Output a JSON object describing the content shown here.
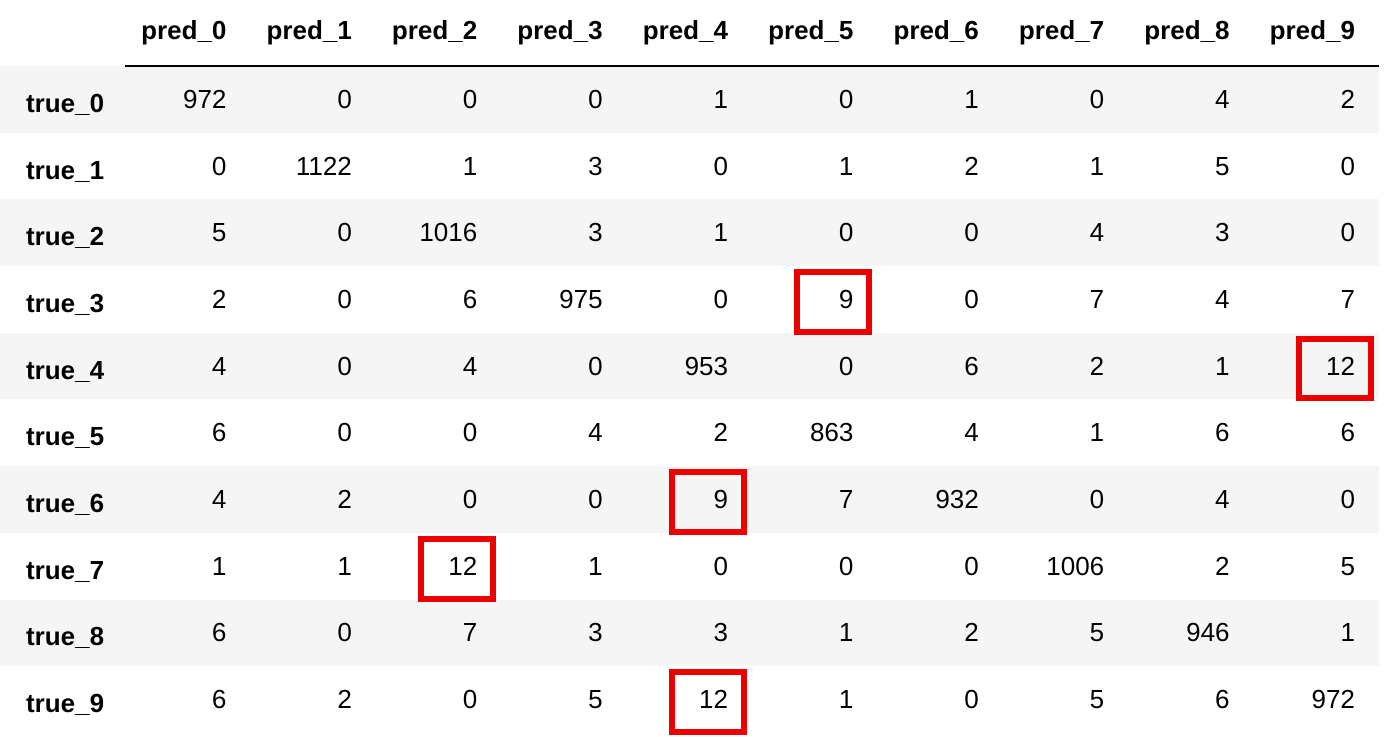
{
  "corner": "",
  "columns": [
    "pred_0",
    "pred_1",
    "pred_2",
    "pred_3",
    "pred_4",
    "pred_5",
    "pred_6",
    "pred_7",
    "pred_8",
    "pred_9"
  ],
  "rows": [
    {
      "label": "true_0",
      "values": [
        "972",
        "0",
        "0",
        "0",
        "1",
        "0",
        "1",
        "0",
        "4",
        "2"
      ],
      "highlighted": []
    },
    {
      "label": "true_1",
      "values": [
        "0",
        "1122",
        "1",
        "3",
        "0",
        "1",
        "2",
        "1",
        "5",
        "0"
      ],
      "highlighted": []
    },
    {
      "label": "true_2",
      "values": [
        "5",
        "0",
        "1016",
        "3",
        "1",
        "0",
        "0",
        "4",
        "3",
        "0"
      ],
      "highlighted": []
    },
    {
      "label": "true_3",
      "values": [
        "2",
        "0",
        "6",
        "975",
        "0",
        "9",
        "0",
        "7",
        "4",
        "7"
      ],
      "highlighted": [
        5
      ]
    },
    {
      "label": "true_4",
      "values": [
        "4",
        "0",
        "4",
        "0",
        "953",
        "0",
        "6",
        "2",
        "1",
        "12"
      ],
      "highlighted": [
        9
      ]
    },
    {
      "label": "true_5",
      "values": [
        "6",
        "0",
        "0",
        "4",
        "2",
        "863",
        "4",
        "1",
        "6",
        "6"
      ],
      "highlighted": []
    },
    {
      "label": "true_6",
      "values": [
        "4",
        "2",
        "0",
        "0",
        "9",
        "7",
        "932",
        "0",
        "4",
        "0"
      ],
      "highlighted": [
        4
      ]
    },
    {
      "label": "true_7",
      "values": [
        "1",
        "1",
        "12",
        "1",
        "0",
        "0",
        "0",
        "1006",
        "2",
        "5"
      ],
      "highlighted": [
        2
      ]
    },
    {
      "label": "true_8",
      "values": [
        "6",
        "0",
        "7",
        "3",
        "3",
        "1",
        "2",
        "5",
        "946",
        "1"
      ],
      "highlighted": []
    },
    {
      "label": "true_9",
      "values": [
        "6",
        "2",
        "0",
        "5",
        "12",
        "1",
        "0",
        "5",
        "6",
        "972"
      ],
      "highlighted": [
        4
      ]
    }
  ],
  "colors": {
    "highlight_border": "#ef0000",
    "stripe": "#f5f5f5",
    "background": "#ffffff",
    "text": "#000000"
  }
}
